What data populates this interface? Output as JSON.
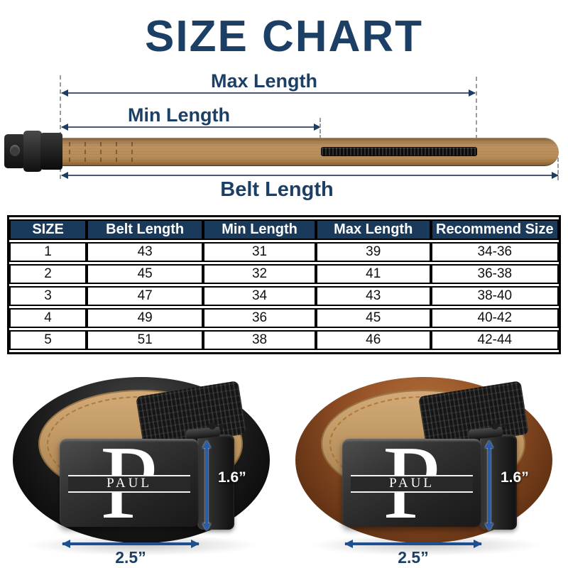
{
  "title": "SIZE CHART",
  "colors": {
    "navy": "#1c3f66",
    "table_header_bg": "#1a3a5c",
    "measure_arrow_blue": "#1d4f91",
    "diagram_arrow": "#47597a",
    "belt_strap_tan": "#b78c58",
    "belt_left_leather": "#1a1a1a",
    "belt_right_leather": "#8f4d24"
  },
  "diagram": {
    "max_length_label": "Max Length",
    "min_length_label": "Min Length",
    "belt_length_label": "Belt Length"
  },
  "chart_data": {
    "type": "table",
    "title": "SIZE CHART",
    "headers": [
      "SIZE",
      "Belt Length",
      "Min Length",
      "Max Length",
      "Recommend Size"
    ],
    "rows": [
      [
        "1",
        "43",
        "31",
        "39",
        "34-36"
      ],
      [
        "2",
        "45",
        "32",
        "41",
        "36-38"
      ],
      [
        "3",
        "47",
        "34",
        "43",
        "38-40"
      ],
      [
        "4",
        "49",
        "36",
        "45",
        "40-42"
      ],
      [
        "5",
        "51",
        "38",
        "46",
        "42-44"
      ]
    ]
  },
  "belts": {
    "left": {
      "initial": "P",
      "name": "PAUL",
      "height_label": "1.6”",
      "width_label": "2.5”"
    },
    "right": {
      "initial": "P",
      "name": "PAUL",
      "height_label": "1.6”",
      "width_label": "2.5”"
    }
  }
}
